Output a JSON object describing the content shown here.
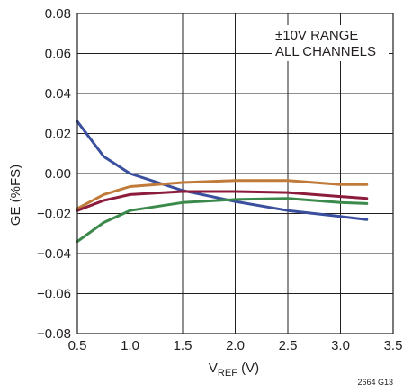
{
  "chart_data": {
    "type": "line",
    "title": "",
    "xlabel": {
      "main": "V",
      "sub": "REF",
      "suffix": " (V)"
    },
    "ylabel": "GE (%FS)",
    "xlim": [
      0.5,
      3.5
    ],
    "ylim": [
      -0.08,
      0.08
    ],
    "x_ticks": [
      0.5,
      1.0,
      1.5,
      2.0,
      2.5,
      3.0,
      3.5
    ],
    "x_tick_labels": [
      "0.5",
      "1.0",
      "1.5",
      "2.0",
      "2.5",
      "3.0",
      "3.5"
    ],
    "y_ticks": [
      0.08,
      0.06,
      0.04,
      0.02,
      0.0,
      -0.02,
      -0.04,
      -0.06,
      -0.08
    ],
    "y_tick_labels": [
      "0.08",
      "0.06",
      "0.04",
      "0.02",
      "0.00",
      "−0.02",
      "−0.04",
      "−0.06",
      "−0.08"
    ],
    "grid": true,
    "annotations": [
      "±10V RANGE",
      "ALL CHANNELS"
    ],
    "figure_id": "2664 G13",
    "series": [
      {
        "color": "#3b4f9f",
        "points": [
          [
            0.5,
            0.026
          ],
          [
            0.75,
            0.0085
          ],
          [
            1.0,
            0.0
          ],
          [
            1.5,
            -0.0085
          ],
          [
            2.0,
            -0.014
          ],
          [
            2.5,
            -0.0185
          ],
          [
            3.0,
            -0.0215
          ],
          [
            3.25,
            -0.023
          ]
        ]
      },
      {
        "color": "#c07a3a",
        "points": [
          [
            0.5,
            -0.0175
          ],
          [
            0.75,
            -0.0105
          ],
          [
            1.0,
            -0.0065
          ],
          [
            1.5,
            -0.0045
          ],
          [
            2.0,
            -0.0035
          ],
          [
            2.5,
            -0.0035
          ],
          [
            3.0,
            -0.0055
          ],
          [
            3.25,
            -0.0055
          ]
        ]
      },
      {
        "color": "#8c1b3c",
        "points": [
          [
            0.5,
            -0.0185
          ],
          [
            0.75,
            -0.0135
          ],
          [
            1.0,
            -0.0105
          ],
          [
            1.5,
            -0.009
          ],
          [
            2.0,
            -0.009
          ],
          [
            2.5,
            -0.0095
          ],
          [
            3.0,
            -0.0115
          ],
          [
            3.25,
            -0.0125
          ]
        ]
      },
      {
        "color": "#3b8a4b",
        "points": [
          [
            0.5,
            -0.034
          ],
          [
            0.75,
            -0.0245
          ],
          [
            1.0,
            -0.0185
          ],
          [
            1.5,
            -0.0145
          ],
          [
            2.0,
            -0.013
          ],
          [
            2.5,
            -0.0125
          ],
          [
            3.0,
            -0.0145
          ],
          [
            3.25,
            -0.015
          ]
        ]
      }
    ]
  }
}
